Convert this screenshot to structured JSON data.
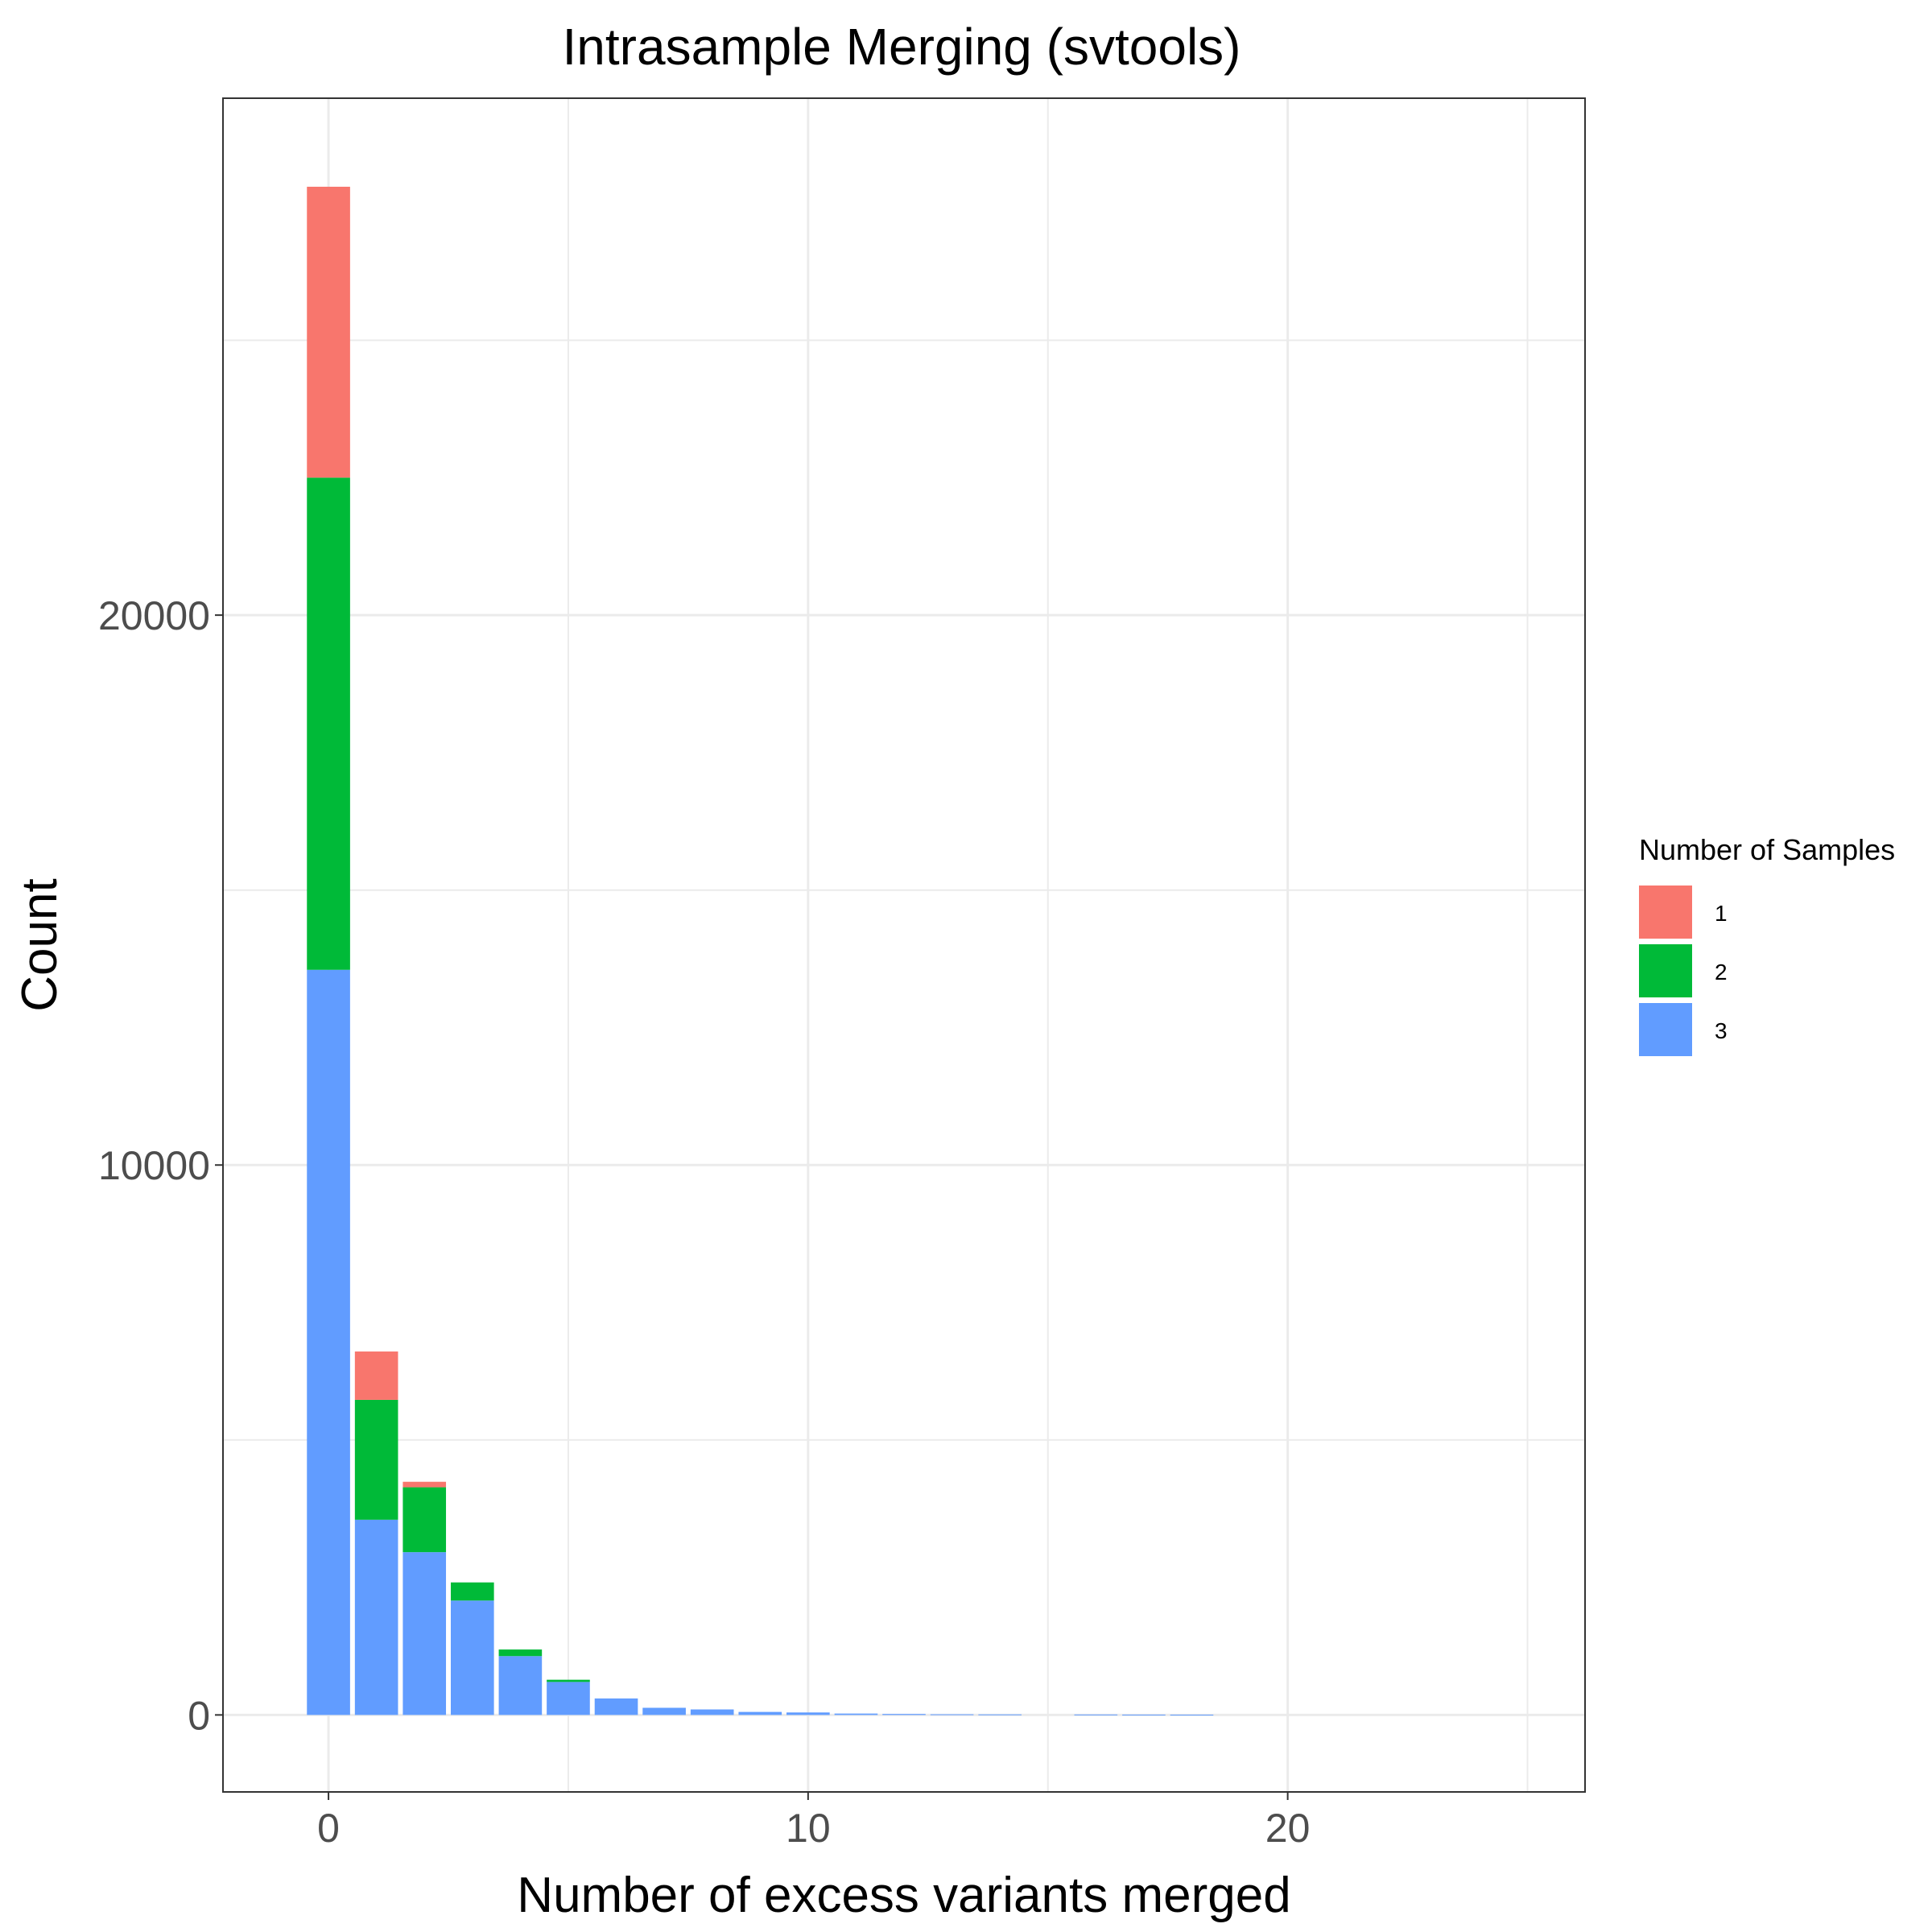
{
  "chart_data": {
    "type": "bar",
    "stacked": true,
    "title": "Intrasample Merging (svtools)",
    "xlabel": "Number of excess variants merged",
    "ylabel": "Count",
    "xlim": [
      -2.2,
      26.2
    ],
    "ylim": [
      -1400,
      29400
    ],
    "x_ticks": [
      0,
      10,
      20
    ],
    "y_ticks": [
      0,
      10000,
      20000
    ],
    "x_grid_major": [
      0,
      10,
      20
    ],
    "x_grid_minor": [
      5,
      15,
      25
    ],
    "y_grid_minor": [
      5000,
      15000,
      25000
    ],
    "grid": true,
    "legend": {
      "title": "Number of Samples",
      "position": "right"
    },
    "x": [
      0,
      1,
      2,
      3,
      4,
      5,
      6,
      7,
      8,
      9,
      10,
      11,
      12,
      13,
      14,
      16,
      17,
      18
    ],
    "series": [
      {
        "name": "3",
        "color": "#619CFF",
        "values": [
          13550,
          3550,
          2960,
          2080,
          1070,
          600,
          300,
          130,
          100,
          55,
          45,
          25,
          18,
          12,
          10,
          8,
          6,
          5
        ]
      },
      {
        "name": "2",
        "color": "#00BA38",
        "values": [
          8950,
          2180,
          1180,
          330,
          120,
          40,
          0,
          0,
          0,
          0,
          0,
          0,
          0,
          0,
          0,
          0,
          0,
          0
        ]
      },
      {
        "name": "1",
        "color": "#F8766D",
        "values": [
          5290,
          880,
          100,
          0,
          0,
          0,
          0,
          0,
          0,
          0,
          0,
          0,
          0,
          0,
          0,
          0,
          0,
          0
        ]
      }
    ]
  }
}
